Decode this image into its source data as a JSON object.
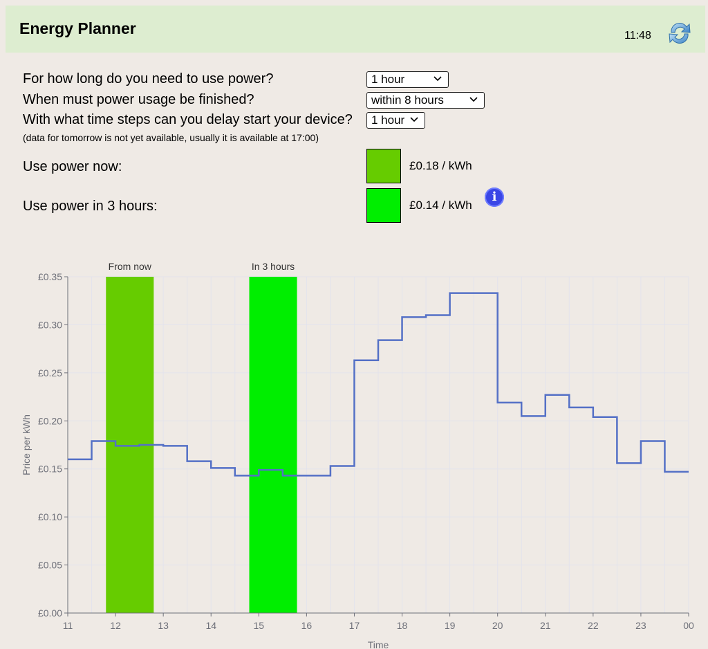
{
  "header": {
    "title": "Energy Planner",
    "time": "11:48"
  },
  "questions": [
    {
      "label": "For how long do you need to use power?",
      "value": "1 hour"
    },
    {
      "label": "When must power usage be finished?",
      "value": "within 8 hours"
    },
    {
      "label": "With what time steps can you delay start your device?",
      "value": "1 hour"
    }
  ],
  "note": "(data for tomorrow is not yet available, usually it is available at 17:00)",
  "options": [
    {
      "label": "Use power now:",
      "price": "£0.18 / kWh",
      "color": "#66cc00"
    },
    {
      "label": "Use power in 3 hours:",
      "price": "£0.14 / kWh",
      "color": "#00ee00"
    }
  ],
  "chart_data": {
    "type": "line",
    "step": true,
    "xlabel": "Time",
    "ylabel": "Price per kWh",
    "ylim": [
      0,
      0.35
    ],
    "yticks": [
      "£0.00",
      "£0.05",
      "£0.10",
      "£0.15",
      "£0.20",
      "£0.25",
      "£0.30",
      "£0.35"
    ],
    "ytick_values": [
      0,
      0.05,
      0.1,
      0.15,
      0.2,
      0.25,
      0.3,
      0.35
    ],
    "xticks": [
      "11",
      "12",
      "13",
      "14",
      "15",
      "16",
      "17",
      "18",
      "19",
      "20",
      "21",
      "22",
      "23",
      "00"
    ],
    "xlim": [
      11,
      24
    ],
    "line_color": "#5470c6",
    "grid": true,
    "series": [
      {
        "x": [
          11,
          11.5,
          12,
          12.5,
          13,
          13.5,
          14,
          14.5,
          15,
          15.5,
          16,
          16.5,
          17,
          17.5,
          18,
          18.5,
          19,
          19.5,
          20,
          20.5,
          21,
          21.5,
          22,
          22.5,
          23,
          23.5
        ],
        "values": [
          0.16,
          0.179,
          0.174,
          0.175,
          0.174,
          0.158,
          0.151,
          0.143,
          0.149,
          0.143,
          0.143,
          0.153,
          0.263,
          0.284,
          0.308,
          0.31,
          0.333,
          0.333,
          0.219,
          0.205,
          0.227,
          0.214,
          0.204,
          0.156,
          0.179,
          0.147
        ]
      }
    ],
    "bands": [
      {
        "label": "From now",
        "start": 11.8,
        "end": 12.8,
        "color": "#66cc00"
      },
      {
        "label": "In 3 hours",
        "start": 14.8,
        "end": 15.8,
        "color": "#00ee00"
      }
    ]
  }
}
